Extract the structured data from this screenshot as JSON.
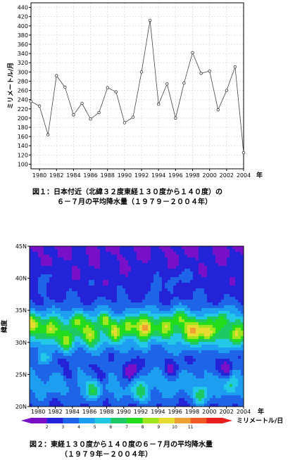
{
  "chart_data": [
    {
      "type": "line",
      "x": [
        1979,
        1980,
        1981,
        1982,
        1983,
        1984,
        1985,
        1986,
        1987,
        1988,
        1989,
        1990,
        1991,
        1992,
        1993,
        1994,
        1995,
        1996,
        1997,
        1998,
        1999,
        2000,
        2001,
        2002,
        2003,
        2004
      ],
      "values": [
        236,
        226,
        164,
        292,
        267,
        207,
        232,
        198,
        212,
        266,
        257,
        190,
        202,
        300,
        412,
        230,
        274,
        200,
        276,
        342,
        297,
        302,
        218,
        260,
        311,
        125
      ],
      "xticks": [
        "1980",
        "1982",
        "1984",
        "1986",
        "1988",
        "1990",
        "1992",
        "1994",
        "1996",
        "1998",
        "2000",
        "2002",
        "2004"
      ],
      "yticks": [
        "100",
        "120",
        "140",
        "160",
        "180",
        "200",
        "220",
        "240",
        "260",
        "280",
        "300",
        "320",
        "340",
        "360",
        "380",
        "400",
        "420",
        "440"
      ],
      "xlabel": "年",
      "ylabel": "ミリメートル/月",
      "ylim": [
        90,
        450
      ],
      "grid": true
    },
    {
      "type": "heatmap",
      "xticks": [
        "1980",
        "1982",
        "1984",
        "1986",
        "1988",
        "1990",
        "1992",
        "1994",
        "1996",
        "1998",
        "2000",
        "2002",
        "2004"
      ],
      "yticks": [
        "20N",
        "25N",
        "30N",
        "35N",
        "40N",
        "45N"
      ],
      "xlabel": "年",
      "ylabel": "緯度",
      "ylim": [
        20,
        45
      ],
      "colorbar_ticks": [
        "2",
        "3",
        "4",
        "5",
        "6",
        "7",
        "8",
        "9",
        "10",
        "11"
      ],
      "colorbar_label": "ミリメートル/日",
      "colors": [
        "#7a0fc8",
        "#2323d8",
        "#1e64e6",
        "#1e9ef0",
        "#22c8e6",
        "#1ec864",
        "#23dc1e",
        "#a0e61e",
        "#e6dc32",
        "#f0a032",
        "#f05a28",
        "#e61e1e"
      ]
    }
  ],
  "captions": {
    "fig1_line1": "図１：日本付近（北緯３２度東経１３０度から１４０度）の",
    "fig1_line2": "６－７月の平均降水量（１９７９－２００４年）",
    "fig2_line1": "図２：東経１３０度から１４０度の６－７月の平均降水量",
    "fig2_line2": "（１９７９年－２００４年）"
  }
}
